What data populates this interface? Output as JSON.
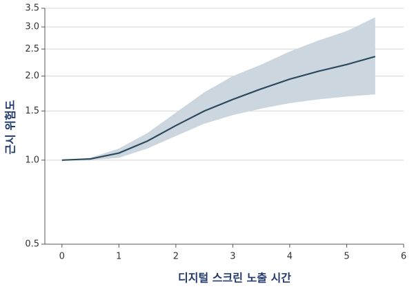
{
  "chart_data": {
    "type": "line",
    "x_label": "디지털 스크린 노출 시간",
    "y_label": "근시 위험도",
    "x": [
      0,
      0.5,
      1,
      1.5,
      2,
      2.5,
      3,
      3.5,
      4,
      4.5,
      5,
      5.5
    ],
    "values": [
      1.0,
      1.01,
      1.06,
      1.17,
      1.33,
      1.5,
      1.65,
      1.8,
      1.95,
      2.08,
      2.2,
      2.35
    ],
    "upper": [
      1.0,
      1.02,
      1.1,
      1.25,
      1.48,
      1.75,
      2.0,
      2.2,
      2.45,
      2.68,
      2.9,
      3.25
    ],
    "lower": [
      1.0,
      1.0,
      1.02,
      1.1,
      1.22,
      1.35,
      1.45,
      1.53,
      1.6,
      1.65,
      1.69,
      1.72
    ],
    "color": "#2b4a5e",
    "band_color": "#ccd6de",
    "xlim": [
      -0.3,
      6
    ],
    "xticks": [
      0,
      1,
      2,
      3,
      4,
      5,
      6
    ],
    "ylim": [
      0.5,
      3.5
    ],
    "log_y": true,
    "yticks": [
      0.5,
      {
        "value": 1,
        "label": "1.0"
      },
      1.5,
      {
        "value": 2,
        "label": "2.0"
      },
      2.5,
      {
        "value": 3,
        "label": "3.0"
      },
      3.5
    ],
    "grid": true
  }
}
